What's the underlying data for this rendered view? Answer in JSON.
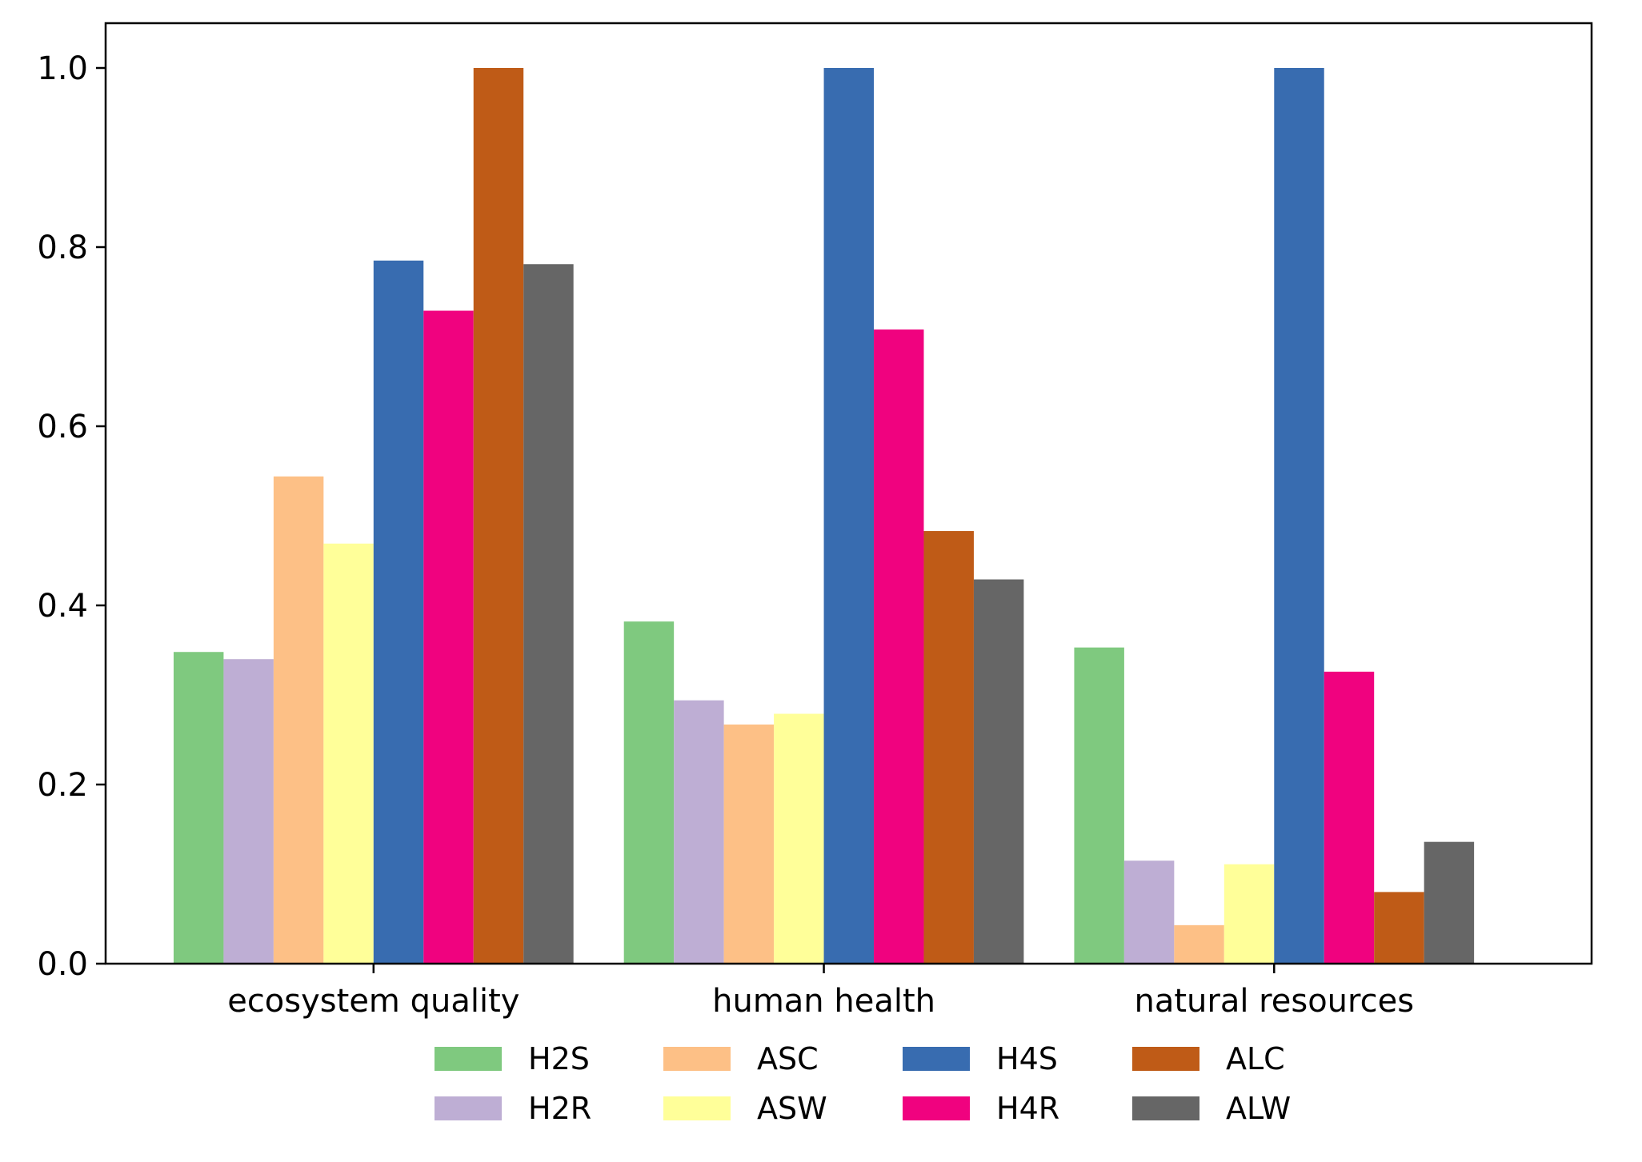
{
  "chart_data": {
    "type": "bar",
    "title": "",
    "xlabel": "",
    "ylabel": "",
    "categories": [
      "ecosystem quality",
      "human health",
      "natural resources"
    ],
    "ylim": [
      0,
      1.05
    ],
    "yticks": [
      "0.0",
      "0.2",
      "0.4",
      "0.6",
      "0.8",
      "1.0"
    ],
    "grid": false,
    "legend_position": "bottom-center",
    "series": [
      {
        "name": "H2S",
        "color": "#7fc97f",
        "values": [
          0.348,
          0.382,
          0.353
        ]
      },
      {
        "name": "H2R",
        "color": "#beaed4",
        "values": [
          0.34,
          0.294,
          0.115
        ]
      },
      {
        "name": "ASC",
        "color": "#fdc086",
        "values": [
          0.544,
          0.267,
          0.043
        ]
      },
      {
        "name": "ASW",
        "color": "#ffff99",
        "values": [
          0.469,
          0.279,
          0.111
        ]
      },
      {
        "name": "H4S",
        "color": "#386cb0",
        "values": [
          0.785,
          1.0,
          1.0
        ]
      },
      {
        "name": "H4R",
        "color": "#f0027f",
        "values": [
          0.729,
          0.708,
          0.326
        ]
      },
      {
        "name": "ALC",
        "color": "#bf5b17",
        "values": [
          1.0,
          0.483,
          0.08
        ]
      },
      {
        "name": "ALW",
        "color": "#666666",
        "values": [
          0.781,
          0.429,
          0.136
        ]
      }
    ]
  }
}
